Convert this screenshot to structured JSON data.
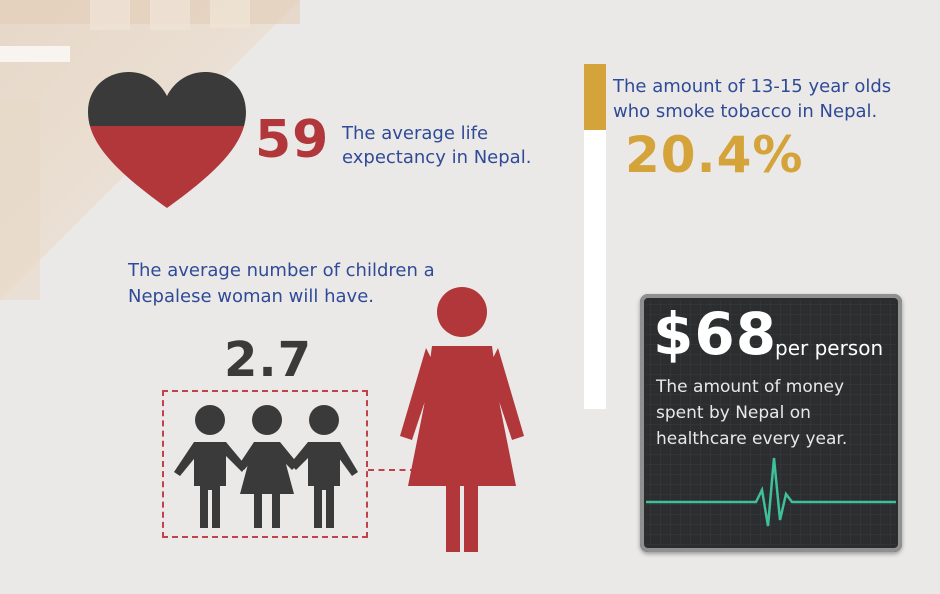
{
  "life_expectancy": {
    "value": "59",
    "description": "The average life expectancy in Nepal."
  },
  "tobacco": {
    "description": "The amount of 13-15 year olds who smoke tobacco in Nepal.",
    "value": "20.4%"
  },
  "children": {
    "description": "The average number of children a Nepalese woman will have.",
    "value": "2.7"
  },
  "healthcare": {
    "value": "$68",
    "unit": "per person",
    "description": "The amount of money spent by Nepal on healthcare every year."
  },
  "colors": {
    "red": "#b1373a",
    "dark": "#3a3a3a",
    "gold": "#d4a33a",
    "blue_text": "#2f4b97",
    "monitor": "#2b2d2e",
    "pulse": "#3fbf9a"
  },
  "icons": [
    "heart-icon",
    "children-icon",
    "woman-icon",
    "heartbeat-line-icon"
  ]
}
